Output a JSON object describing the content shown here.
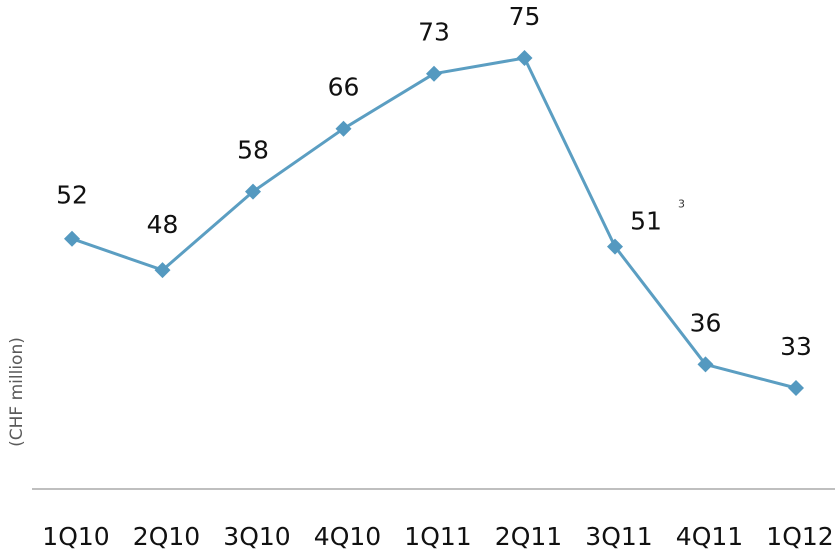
{
  "chart_data": {
    "type": "line",
    "title": "",
    "xlabel": "",
    "ylabel": "(CHF million)",
    "categories": [
      "1Q10",
      "2Q10",
      "3Q10",
      "4Q10",
      "1Q11",
      "2Q11",
      "3Q11",
      "4Q11",
      "1Q12"
    ],
    "series": [
      {
        "values": [
          52,
          48,
          58,
          66,
          73,
          75,
          51,
          36,
          33
        ]
      }
    ],
    "ylim": [
      20,
      80
    ],
    "grid": false,
    "footnotes": [
      {
        "category": "3Q11",
        "mark": "3"
      }
    ],
    "colors": {
      "line": "#5b9ec2",
      "marker": "#5499c0",
      "axis": "#aaaaaa"
    }
  }
}
